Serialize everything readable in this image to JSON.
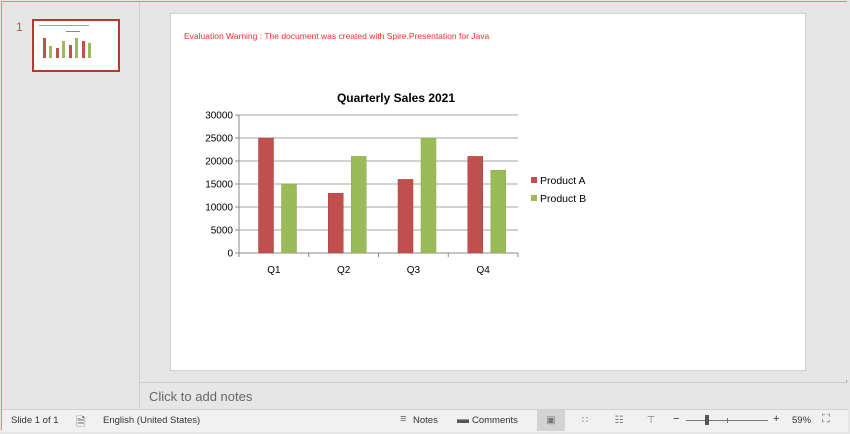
{
  "thumbnails": [
    {
      "number": "1"
    }
  ],
  "slide": {
    "warning_text": "Evaluation Warning : The document was created with  Spire.Presentation for Java"
  },
  "notes": {
    "placeholder": "Click to add notes"
  },
  "status_bar": {
    "slide_indicator": "Slide 1 of 1",
    "language": "English (United States)",
    "notes_label": "Notes",
    "comments_label": "Comments",
    "zoom_minus": "−",
    "zoom_plus": "+",
    "zoom_level": "59%"
  },
  "colors": {
    "product_a": "#c0504d",
    "product_b": "#9bbb59",
    "warning": "#ff2b2b",
    "accent": "#b6392f"
  },
  "chart_data": {
    "type": "bar",
    "title": "Quarterly Sales 2021",
    "categories": [
      "Q1",
      "Q2",
      "Q3",
      "Q4"
    ],
    "series": [
      {
        "name": "Product A",
        "values": [
          25000,
          13000,
          16000,
          21000
        ],
        "color": "#c0504d"
      },
      {
        "name": "Product B",
        "values": [
          15000,
          21000,
          25000,
          18000
        ],
        "color": "#9bbb59"
      }
    ],
    "xlabel": "",
    "ylabel": "",
    "ylim": [
      0,
      30000
    ],
    "yticks": [
      "0",
      "5000",
      "10000",
      "15000",
      "20000",
      "25000",
      "30000"
    ],
    "grid": true,
    "legend_position": "right"
  }
}
